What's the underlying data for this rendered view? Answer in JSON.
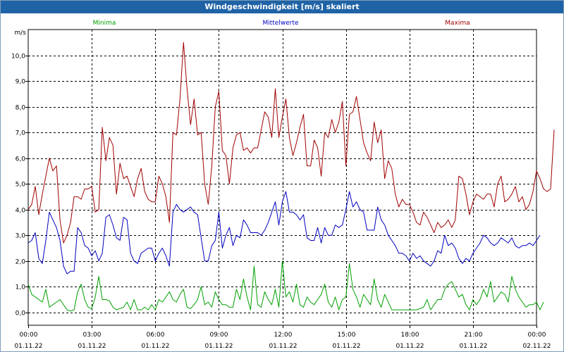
{
  "window": {
    "title": "Windgeschwindigkeit [m/s] skaliert"
  },
  "chart_data": {
    "type": "line",
    "title": "Windgeschwindigkeit [m/s] skaliert",
    "ylabel": "m/s",
    "ylim": [
      -0.5,
      11.0
    ],
    "y_ticks": [
      "0,0",
      "1,0",
      "2,0",
      "3,0",
      "4,0",
      "5,0",
      "6,0",
      "7,0",
      "8,0",
      "9,0",
      "10,0"
    ],
    "y_tick_values": [
      0,
      1,
      2,
      3,
      4,
      5,
      6,
      7,
      8,
      9,
      10
    ],
    "xlim": [
      0,
      1440
    ],
    "x_ticks": [
      {
        "time": "00:00",
        "date": "01.11.22",
        "minute": 0
      },
      {
        "time": "03:00",
        "date": "01.11.22",
        "minute": 180
      },
      {
        "time": "06:00",
        "date": "01.11.22",
        "minute": 360
      },
      {
        "time": "09:00",
        "date": "01.11.22",
        "minute": 540
      },
      {
        "time": "12:00",
        "date": "01.11.22",
        "minute": 720
      },
      {
        "time": "15:00",
        "date": "01.11.22",
        "minute": 900
      },
      {
        "time": "18:00",
        "date": "01.11.22",
        "minute": 1080
      },
      {
        "time": "21:00",
        "date": "01.11.22",
        "minute": 1260
      },
      {
        "time": "00:00",
        "date": "02.11.22",
        "minute": 1440
      }
    ],
    "grid": true,
    "legend_position": "top",
    "sample_interval_minutes": 10,
    "series": [
      {
        "name": "Minima",
        "color": "#00a000",
        "values": [
          1.1,
          0.7,
          0.6,
          0.5,
          0.4,
          0.9,
          0.2,
          0.3,
          0.4,
          0.5,
          0.3,
          0.1,
          0.05,
          0.1,
          0.8,
          1.1,
          0.5,
          0.2,
          0.15,
          0.6,
          1.4,
          0.5,
          0.5,
          0.45,
          0.2,
          0.1,
          0.15,
          0.2,
          0.4,
          0.1,
          0.5,
          0.1,
          0.1,
          0.2,
          0.1,
          0.3,
          0.1,
          0.5,
          0.4,
          0.6,
          0.8,
          0.5,
          0.4,
          0.7,
          0.9,
          0.2,
          0.15,
          0.3,
          0.5,
          1.0,
          0.3,
          0.4,
          0.2,
          0.8,
          0.5,
          0.3,
          0.3,
          0.2,
          0.2,
          0.9,
          0.5,
          1.3,
          0.6,
          0.1,
          1.8,
          0.3,
          0.2,
          0.8,
          0.5,
          0.3,
          0.9,
          0.2,
          2.0,
          0.6,
          0.8,
          0.4,
          1.1,
          0.3,
          0.2,
          0.6,
          0.4,
          0.3,
          0.5,
          0.7,
          1.1,
          0.4,
          0.2,
          0.6,
          0.1,
          0.5,
          0.6,
          1.9,
          0.9,
          0.6,
          0.2,
          0.7,
          0.5,
          0.3,
          1.3,
          0.5,
          0.2,
          0.7,
          0.4,
          0.1,
          0.1,
          0.1,
          0.1,
          0.1,
          0.1,
          0.1,
          0.1,
          0.15,
          0.2,
          0.5,
          0.1,
          0.3,
          0.5,
          0.5,
          0.9,
          1.1,
          1.2,
          0.9,
          0.6,
          0.7,
          0.3,
          0.1,
          0.5,
          0.3,
          0.5,
          0.9,
          0.6,
          1.2,
          0.4,
          0.6,
          0.8,
          0.7,
          0.4,
          1.4,
          0.9,
          0.6,
          0.4,
          0.2,
          0.3,
          0.3,
          0.4,
          0.1,
          0.4
        ]
      },
      {
        "name": "Mittelwerte",
        "color": "#0000c0",
        "values": [
          2.7,
          2.8,
          3.1,
          2.1,
          1.9,
          2.8,
          3.9,
          3.6,
          3.3,
          2.8,
          1.8,
          1.5,
          1.6,
          1.6,
          3.3,
          3.1,
          2.6,
          2.5,
          2.2,
          2.4,
          2.0,
          2.3,
          3.7,
          3.8,
          3.4,
          2.9,
          2.8,
          3.7,
          3.6,
          2.3,
          2.0,
          1.9,
          2.3,
          2.4,
          2.5,
          2.5,
          2.0,
          2.3,
          2.5,
          2.2,
          1.8,
          3.9,
          4.2,
          4.0,
          3.9,
          4.0,
          4.1,
          3.9,
          3.8,
          2.9,
          2.0,
          2.0,
          2.6,
          2.8,
          3.9,
          2.5,
          3.0,
          3.3,
          2.6,
          3.0,
          2.9,
          3.6,
          3.4,
          3.1,
          3.1,
          3.1,
          3.0,
          3.2,
          3.5,
          3.9,
          4.3,
          3.4,
          4.3,
          4.7,
          3.9,
          3.9,
          3.8,
          3.6,
          3.8,
          2.9,
          2.8,
          2.8,
          3.3,
          2.7,
          3.3,
          3.0,
          3.0,
          3.4,
          3.3,
          3.4,
          4.0,
          4.7,
          4.1,
          4.3,
          4.0,
          3.9,
          3.2,
          3.2,
          3.2,
          4.1,
          3.6,
          3.4,
          3.0,
          2.8,
          2.6,
          2.3,
          2.3,
          2.2,
          2.0,
          2.3,
          2.1,
          2.2,
          2.0,
          1.9,
          1.8,
          2.0,
          2.4,
          2.3,
          3.0,
          2.6,
          2.7,
          2.5,
          2.1,
          1.9,
          2.1,
          2.0,
          2.3,
          2.5,
          2.7,
          3.0,
          2.9,
          2.7,
          2.6,
          2.7,
          2.9,
          2.8,
          2.7,
          2.9,
          2.6,
          2.5,
          2.6,
          2.6,
          2.7,
          2.6,
          2.8,
          3.0
        ]
      },
      {
        "name": "Maxima",
        "color": "#a00000",
        "values": [
          4.0,
          4.2,
          4.9,
          3.8,
          4.6,
          5.3,
          6.0,
          5.5,
          5.7,
          3.6,
          2.7,
          3.0,
          3.5,
          4.5,
          4.5,
          4.4,
          4.8,
          4.8,
          4.9,
          3.9,
          4.0,
          7.2,
          5.9,
          6.8,
          6.5,
          4.6,
          5.8,
          5.2,
          5.3,
          4.9,
          4.5,
          5.2,
          5.6,
          4.7,
          4.4,
          4.3,
          4.3,
          5.3,
          5.0,
          4.5,
          3.5,
          7.0,
          6.9,
          8.3,
          10.5,
          8.7,
          7.3,
          8.3,
          6.9,
          7.0,
          5.0,
          4.2,
          5.7,
          8.0,
          8.6,
          6.3,
          6.1,
          5.0,
          6.4,
          6.9,
          7.0,
          6.3,
          6.4,
          6.2,
          6.4,
          6.4,
          7.1,
          7.8,
          7.6,
          6.8,
          8.7,
          6.8,
          7.6,
          8.3,
          6.8,
          6.1,
          6.6,
          7.2,
          7.7,
          5.7,
          5.7,
          6.7,
          6.4,
          5.3,
          7.0,
          6.8,
          7.5,
          7.0,
          7.4,
          8.2,
          5.7,
          7.7,
          7.8,
          8.4,
          7.5,
          6.6,
          6.2,
          5.9,
          7.4,
          6.6,
          7.1,
          5.2,
          5.9,
          5.6,
          4.6,
          4.1,
          4.4,
          4.2,
          4.2,
          3.9,
          3.5,
          3.4,
          3.9,
          3.7,
          3.4,
          3.1,
          3.5,
          3.3,
          3.4,
          3.6,
          3.3,
          3.6,
          5.3,
          5.2,
          4.6,
          3.8,
          4.3,
          4.6,
          4.5,
          4.4,
          4.6,
          4.6,
          4.1,
          5.0,
          5.3,
          4.3,
          4.4,
          4.6,
          4.9,
          4.3,
          4.5,
          4.0,
          4.2,
          4.7,
          5.5,
          5.2,
          4.8,
          4.7,
          4.8,
          7.1
        ]
      }
    ]
  }
}
